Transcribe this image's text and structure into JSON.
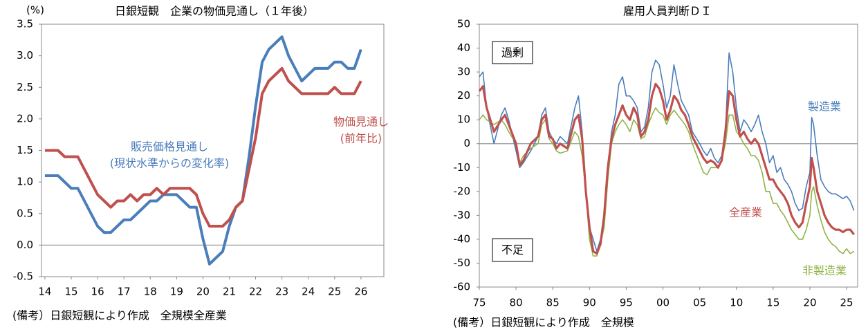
{
  "chart_data": [
    {
      "type": "line",
      "title": "日銀短観　企業の物価見通し（１年後）",
      "y_label": "(%)",
      "x": [
        14,
        14.25,
        14.5,
        14.75,
        15,
        15.25,
        15.5,
        15.75,
        16,
        16.25,
        16.5,
        16.75,
        17,
        17.25,
        17.5,
        17.75,
        18,
        18.25,
        18.5,
        18.75,
        19,
        19.25,
        19.5,
        19.75,
        20,
        20.25,
        20.5,
        20.75,
        21,
        21.25,
        21.5,
        21.75,
        22,
        22.25,
        22.5,
        22.75,
        23,
        23.25,
        23.5,
        23.75,
        24,
        24.25,
        24.5,
        24.75,
        25,
        25.25,
        25.5,
        25.75,
        26
      ],
      "series": [
        {
          "name": "販売価格見通し",
          "sublabel": "(現状水準からの変化率)",
          "color": "#4a7ebb",
          "values": [
            1.1,
            1.1,
            1.1,
            1.0,
            0.9,
            0.9,
            0.7,
            0.5,
            0.3,
            0.2,
            0.2,
            0.3,
            0.4,
            0.4,
            0.5,
            0.6,
            0.7,
            0.7,
            0.8,
            0.8,
            0.8,
            0.7,
            0.6,
            0.6,
            0.1,
            -0.3,
            -0.2,
            -0.1,
            0.3,
            0.6,
            0.7,
            1.4,
            2.2,
            2.9,
            3.1,
            3.2,
            3.3,
            3.0,
            2.8,
            2.6,
            2.7,
            2.8,
            2.8,
            2.8,
            2.9,
            2.9,
            2.8,
            2.8,
            3.1
          ]
        },
        {
          "name": "物価見通し",
          "sublabel": "(前年比)",
          "color": "#c0504d",
          "values": [
            1.5,
            1.5,
            1.5,
            1.4,
            1.4,
            1.4,
            1.2,
            1.0,
            0.8,
            0.7,
            0.6,
            0.7,
            0.7,
            0.8,
            0.7,
            0.8,
            0.8,
            0.9,
            0.8,
            0.9,
            0.9,
            0.9,
            0.9,
            0.8,
            0.5,
            0.3,
            0.3,
            0.3,
            0.4,
            0.6,
            0.7,
            1.2,
            1.7,
            2.4,
            2.6,
            2.7,
            2.8,
            2.6,
            2.5,
            2.4,
            2.4,
            2.4,
            2.4,
            2.4,
            2.5,
            2.4,
            2.4,
            2.4,
            2.6
          ]
        }
      ],
      "xlim": [
        13.87,
        26.87
      ],
      "xticks": [
        14,
        15,
        16,
        17,
        18,
        19,
        20,
        21,
        22,
        23,
        24,
        25,
        26
      ],
      "ylim": [
        -0.5,
        3.5
      ],
      "yticks": [
        -0.5,
        {
          "value": 0,
          "label": "0.0"
        },
        0.5,
        {
          "value": 1,
          "label": "1.0"
        },
        1.5,
        {
          "value": 2,
          "label": "2.0"
        },
        2.5,
        {
          "value": 3,
          "label": "3.0"
        },
        3.5
      ],
      "footnote": "(備考）日銀短観により作成　全規模全産業"
    },
    {
      "type": "line",
      "title": "雇用人員判断ＤＩ",
      "x": [
        1975,
        1975.5,
        1976,
        1977,
        1978,
        1978.5,
        1979,
        1980,
        1980.5,
        1981,
        1982,
        1983,
        1983.5,
        1984,
        1984.5,
        1985,
        1985.5,
        1986,
        1987,
        1988,
        1988.5,
        1989,
        1989.5,
        1990,
        1990.5,
        1991,
        1991.5,
        1992,
        1992.5,
        1993,
        1993.5,
        1994,
        1994.5,
        1995,
        1995.5,
        1996,
        1996.5,
        1997,
        1997.5,
        1998,
        1998.5,
        1999,
        1999.5,
        2000,
        2000.5,
        2001,
        2001.5,
        2002,
        2002.5,
        2003,
        2003.5,
        2004,
        2005,
        2005.5,
        2006,
        2006.5,
        2007,
        2007.5,
        2008,
        2008.5,
        2009,
        2009.5,
        2010,
        2010.5,
        2011,
        2011.5,
        2012,
        2012.5,
        2013,
        2013.5,
        2014,
        2014.5,
        2015,
        2015.5,
        2016,
        2016.5,
        2017,
        2017.5,
        2018,
        2018.5,
        2019,
        2019.5,
        2020,
        2020.25,
        2020.5,
        2021,
        2021.5,
        2022,
        2022.5,
        2023,
        2023.5,
        2024,
        2024.5,
        2025,
        2025.5,
        2026
      ],
      "series": [
        {
          "name": "製造業",
          "color": "#4a7ebb",
          "values": [
            28,
            30,
            15,
            0,
            12,
            15,
            10,
            -3,
            -10,
            -8,
            -3,
            3,
            12,
            15,
            5,
            2,
            0,
            3,
            0,
            15,
            20,
            5,
            -20,
            -35,
            -40,
            -45,
            -40,
            -30,
            -10,
            5,
            12,
            25,
            28,
            20,
            20,
            18,
            15,
            5,
            7,
            15,
            30,
            35,
            33,
            25,
            15,
            20,
            33,
            25,
            18,
            15,
            12,
            5,
            0,
            -3,
            -5,
            -2,
            -6,
            -8,
            -5,
            5,
            38,
            30,
            15,
            5,
            10,
            8,
            5,
            8,
            12,
            5,
            0,
            -8,
            -5,
            -12,
            -10,
            -15,
            -17,
            -20,
            -25,
            -28,
            -27,
            -18,
            -12,
            11,
            8,
            -5,
            -15,
            -18,
            -20,
            -21,
            -21,
            -22,
            -23,
            -22,
            -24,
            -28
          ]
        },
        {
          "name": "全産業",
          "color": "#c0504d",
          "values": [
            22,
            24,
            15,
            5,
            10,
            12,
            8,
            0,
            -9,
            -7,
            0,
            3,
            10,
            12,
            3,
            2,
            -2,
            0,
            -2,
            10,
            12,
            2,
            -20,
            -35,
            -45,
            -46,
            -42,
            -30,
            -10,
            2,
            8,
            12,
            16,
            12,
            10,
            15,
            12,
            3,
            5,
            10,
            20,
            25,
            23,
            18,
            10,
            14,
            20,
            18,
            14,
            12,
            8,
            3,
            -3,
            -6,
            -8,
            -7,
            -8,
            -10,
            -7,
            5,
            22,
            20,
            10,
            3,
            5,
            2,
            0,
            2,
            0,
            -5,
            -10,
            -15,
            -15,
            -18,
            -20,
            -22,
            -25,
            -30,
            -33,
            -35,
            -33,
            -25,
            -18,
            -6,
            -10,
            -20,
            -25,
            -30,
            -33,
            -35,
            -36,
            -36,
            -37,
            -36,
            -36,
            -38
          ]
        },
        {
          "name": "非製造業",
          "color": "#8fb447",
          "values": [
            10,
            12,
            10,
            8,
            10,
            8,
            5,
            0,
            -8,
            -5,
            -2,
            0,
            8,
            10,
            2,
            0,
            -3,
            -4,
            -3,
            5,
            3,
            -5,
            -20,
            -40,
            -47,
            -47,
            -42,
            -35,
            -15,
            0,
            5,
            8,
            10,
            8,
            5,
            10,
            8,
            2,
            3,
            8,
            12,
            15,
            13,
            12,
            8,
            12,
            14,
            12,
            10,
            8,
            5,
            0,
            -8,
            -12,
            -13,
            -10,
            -10,
            -10,
            -7,
            0,
            12,
            12,
            5,
            3,
            0,
            -2,
            -5,
            -5,
            -7,
            -12,
            -20,
            -20,
            -25,
            -25,
            -28,
            -30,
            -33,
            -36,
            -38,
            -40,
            -40,
            -36,
            -30,
            -20,
            -18,
            -26,
            -32,
            -37,
            -40,
            -42,
            -43,
            -45,
            -46,
            -44,
            -46,
            -45
          ]
        }
      ],
      "xlim": [
        1975,
        2026.5
      ],
      "xticks": [
        {
          "value": 1975,
          "label": "75"
        },
        {
          "value": 1980,
          "label": "80"
        },
        {
          "value": 1985,
          "label": "85"
        },
        {
          "value": 1990,
          "label": "90"
        },
        {
          "value": 1995,
          "label": "95"
        },
        {
          "value": 2000,
          "label": "00"
        },
        {
          "value": 2005,
          "label": "05"
        },
        {
          "value": 2010,
          "label": "10"
        },
        {
          "value": 2015,
          "label": "15"
        },
        {
          "value": 2020,
          "label": "20"
        },
        {
          "value": 2025,
          "label": "25"
        }
      ],
      "ylim": [
        -60,
        50
      ],
      "yticks": [
        -60,
        -50,
        -40,
        -30,
        -20,
        -10,
        0,
        10,
        20,
        30,
        40,
        50
      ],
      "annotations": [
        "過剰",
        "不足"
      ],
      "footnote": "(備考）日銀短観により作成　全規模"
    }
  ]
}
